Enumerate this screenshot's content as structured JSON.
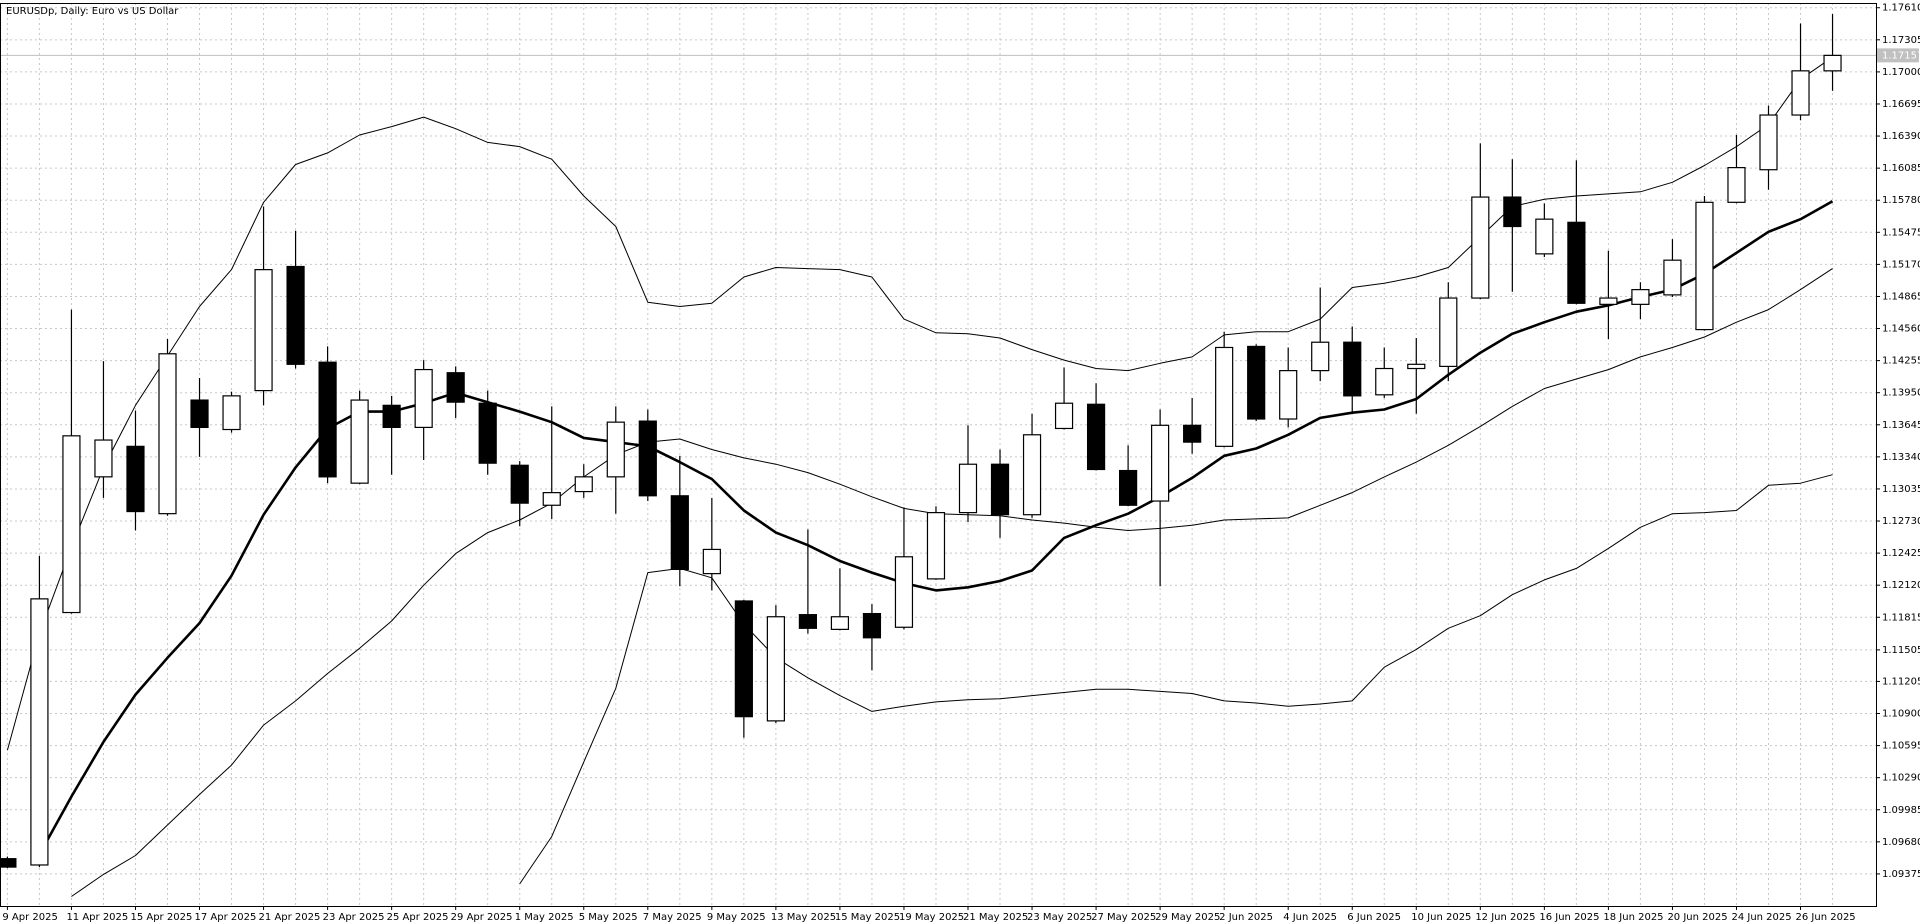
{
  "chart_data": {
    "type": "candlestick",
    "title": "EURUSDp, Daily:  Euro vs US Dollar",
    "current_price": 1.17157,
    "categories": [
      "9 Apr 2025",
      null,
      "11 Apr 2025",
      null,
      "15 Apr 2025",
      null,
      "17 Apr 2025",
      null,
      "21 Apr 2025",
      null,
      "23 Apr 2025",
      null,
      "25 Apr 2025",
      null,
      "29 Apr 2025",
      null,
      "1 May 2025",
      null,
      "5 May 2025",
      null,
      "7 May 2025",
      null,
      "9 May 2025",
      null,
      "13 May 2025",
      null,
      "15 May 2025",
      null,
      "19 May 2025",
      null,
      "21 May 2025",
      null,
      "23 May 2025",
      null,
      "27 May 2025",
      null,
      "29 May 2025",
      null,
      "2 Jun 2025",
      null,
      "4 Jun 2025",
      null,
      "6 Jun 2025",
      null,
      "10 Jun 2025",
      null,
      "12 Jun 2025",
      null,
      "16 Jun 2025",
      null,
      "18 Jun 2025",
      null,
      "20 Jun 2025",
      null,
      "24 Jun 2025",
      null,
      "26 Jun 2025",
      null
    ],
    "open": [
      1.0952,
      1.0946,
      1.1186,
      1.1315,
      1.1344,
      1.128,
      1.1388,
      1.136,
      1.1397,
      1.1515,
      1.1424,
      1.1309,
      1.1383,
      1.1362,
      1.1414,
      1.1385,
      1.1326,
      1.1288,
      1.1301,
      1.1315,
      1.1368,
      1.1297,
      1.1223,
      1.1197,
      1.1083,
      1.1184,
      1.117,
      1.1185,
      1.1172,
      1.1218,
      1.1281,
      1.1327,
      1.1279,
      1.1361,
      1.1384,
      1.1321,
      1.1292,
      1.1364,
      1.1344,
      1.1439,
      1.137,
      1.1416,
      1.1443,
      1.1393,
      1.1418,
      1.142,
      1.1485,
      1.1581,
      1.1527,
      1.1557,
      1.1479,
      1.1479,
      1.1488,
      1.1455,
      1.1576,
      1.1607,
      1.1659,
      1.1701
    ],
    "high": [
      1.0954,
      1.124,
      1.1474,
      1.1425,
      1.1378,
      1.1446,
      1.1409,
      1.1396,
      1.1572,
      1.1549,
      1.1439,
      1.1397,
      1.1392,
      1.1426,
      1.142,
      1.1397,
      1.133,
      1.1382,
      1.1327,
      1.1382,
      1.1379,
      1.1335,
      1.1295,
      1.1198,
      1.1193,
      1.1265,
      1.1228,
      1.1194,
      1.1286,
      1.1287,
      1.1364,
      1.1341,
      1.1375,
      1.1419,
      1.1404,
      1.1345,
      1.1379,
      1.139,
      1.1453,
      1.1441,
      1.1438,
      1.1495,
      1.1458,
      1.1438,
      1.1447,
      1.15,
      1.1632,
      1.1617,
      1.1575,
      1.1616,
      1.153,
      1.15,
      1.1541,
      1.1582,
      1.164,
      1.1668,
      1.1746,
      1.1755
    ],
    "low": [
      1.0943,
      1.0944,
      1.1185,
      1.1295,
      1.1264,
      1.1278,
      1.1334,
      1.1357,
      1.1383,
      1.1418,
      1.1309,
      1.1308,
      1.1317,
      1.1331,
      1.1371,
      1.1317,
      1.1268,
      1.1275,
      1.1295,
      1.128,
      1.1292,
      1.1211,
      1.1207,
      1.1067,
      1.1081,
      1.1166,
      1.1169,
      1.1131,
      1.117,
      1.1217,
      1.1272,
      1.1257,
      1.1276,
      1.136,
      1.1321,
      1.1287,
      1.1211,
      1.1337,
      1.1343,
      1.1368,
      1.1362,
      1.1406,
      1.1377,
      1.139,
      1.1375,
      1.1406,
      1.1484,
      1.1491,
      1.1524,
      1.1479,
      1.1446,
      1.1465,
      1.1486,
      1.1454,
      1.1575,
      1.1588,
      1.1654,
      1.1682
    ],
    "close": [
      1.0944,
      1.1199,
      1.1354,
      1.135,
      1.1282,
      1.1432,
      1.1362,
      1.1392,
      1.1512,
      1.1422,
      1.1315,
      1.1388,
      1.1362,
      1.1417,
      1.1386,
      1.1328,
      1.129,
      1.13,
      1.1315,
      1.1367,
      1.1297,
      1.1227,
      1.1246,
      1.1087,
      1.1182,
      1.1171,
      1.1182,
      1.1162,
      1.1239,
      1.1281,
      1.1327,
      1.1279,
      1.1355,
      1.1385,
      1.1322,
      1.1288,
      1.1364,
      1.1348,
      1.1438,
      1.137,
      1.1416,
      1.1443,
      1.1392,
      1.1418,
      1.1422,
      1.1485,
      1.1581,
      1.1553,
      1.156,
      1.148,
      1.1485,
      1.1493,
      1.1521,
      1.1576,
      1.1609,
      1.1659,
      1.1701,
      1.17157
    ],
    "up_color": "#ffffff",
    "down_color": "#000000",
    "lines": [
      {
        "color": "#000000",
        "values": [
          null,
          1.0956,
          1.1011,
          1.1063,
          1.1108,
          1.1143,
          1.1176,
          1.1221,
          1.1279,
          1.1324,
          1.1361,
          1.1377,
          1.1377,
          1.1385,
          1.1395,
          1.1386,
          1.1377,
          1.1367,
          1.1352,
          1.1348,
          1.1344,
          1.1329,
          1.1313,
          1.1283,
          1.1262,
          1.125,
          1.1235,
          1.1224,
          1.1214,
          1.1207,
          1.121,
          1.1216,
          1.1226,
          1.1257,
          1.1269,
          1.128,
          1.1296,
          1.1314,
          1.1335,
          1.1342,
          1.1355,
          1.1371,
          1.1376,
          1.1379,
          1.1389,
          1.1412,
          1.1433,
          1.1451,
          1.1462,
          1.1472,
          1.1478,
          1.1486,
          1.1493,
          1.1508,
          1.1528,
          1.1548,
          1.156,
          1.1577
        ]
      },
      {
        "color": "#000000",
        "values": [
          1.1055,
          1.1166,
          1.1248,
          1.1324,
          1.1383,
          1.143,
          1.1477,
          1.1512,
          1.1576,
          1.1612,
          1.1623,
          1.164,
          1.1648,
          1.1657,
          1.1646,
          1.1633,
          1.1629,
          1.1617,
          1.1582,
          1.1553,
          1.1481,
          1.1477,
          1.148,
          1.1505,
          1.1514,
          1.1513,
          1.1512,
          1.1505,
          1.1465,
          1.1452,
          1.1451,
          1.1447,
          1.1436,
          1.1426,
          1.1418,
          1.1416,
          1.1423,
          1.1429,
          1.145,
          1.1453,
          1.1453,
          1.1465,
          1.1495,
          1.1499,
          1.1505,
          1.1514,
          1.1543,
          1.1572,
          1.1579,
          1.1582,
          1.1584,
          1.1586,
          1.1595,
          1.1611,
          1.1629,
          1.165,
          1.1693,
          1.1714
        ]
      },
      {
        "color": "#000000",
        "values": [
          null,
          null,
          1.0916,
          1.0937,
          1.0955,
          1.0984,
          1.1013,
          1.1041,
          1.1079,
          1.1102,
          1.1128,
          1.1152,
          1.1178,
          1.1212,
          1.1242,
          1.1262,
          1.1274,
          1.129,
          1.1315,
          1.1336,
          1.1348,
          1.1351,
          1.1341,
          1.1333,
          1.1327,
          1.1319,
          1.1308,
          1.1296,
          1.1285,
          1.128,
          1.1279,
          1.1278,
          1.1274,
          1.1271,
          1.1267,
          1.1264,
          1.1266,
          1.1269,
          1.1274,
          1.1275,
          1.1276,
          1.1288,
          1.13,
          1.1315,
          1.1329,
          1.1345,
          1.1363,
          1.1382,
          1.1399,
          1.1408,
          1.1417,
          1.1429,
          1.1438,
          1.1448,
          1.1462,
          1.1474,
          1.1493,
          1.1513
        ]
      },
      {
        "color": "#000000",
        "values": [
          null,
          null,
          null,
          null,
          null,
          null,
          null,
          null,
          null,
          null,
          null,
          null,
          null,
          null,
          null,
          null,
          1.0928,
          1.0973,
          1.1044,
          1.1114,
          1.1224,
          1.1228,
          1.1219,
          1.1175,
          1.1143,
          1.1124,
          1.1107,
          1.1092,
          1.1097,
          1.1101,
          1.1103,
          1.1104,
          1.1107,
          1.111,
          1.1113,
          1.1113,
          1.1111,
          1.1109,
          1.1102,
          1.11,
          1.1097,
          1.1099,
          1.1102,
          1.1134,
          1.1151,
          1.1171,
          1.1183,
          1.1203,
          1.1217,
          1.1228,
          1.1247,
          1.1267,
          1.128,
          1.1281,
          1.1283,
          1.1307,
          1.1309,
          1.1317
        ]
      }
    ],
    "ylim": [
      1.0907,
      1.17655
    ],
    "yticks": [
      {
        "value": 1.1761,
        "label": "1.17610"
      },
      1.17305,
      {
        "value": 1.17,
        "label": "1.17000"
      },
      1.16695,
      {
        "value": 1.1639,
        "label": "1.16390"
      },
      1.16085,
      {
        "value": 1.1578,
        "label": "1.15780"
      },
      1.15475,
      {
        "value": 1.1517,
        "label": "1.15170"
      },
      1.14865,
      {
        "value": 1.1456,
        "label": "1.14560"
      },
      1.14255,
      {
        "value": 1.1395,
        "label": "1.13950"
      },
      1.13645,
      {
        "value": 1.1334,
        "label": "1.13340"
      },
      1.13035,
      {
        "value": 1.1273,
        "label": "1.12730"
      },
      1.12425,
      {
        "value": 1.1212,
        "label": "1.12120"
      },
      1.11815,
      1.11505,
      1.11205,
      {
        "value": 1.109,
        "label": "1.10900"
      },
      1.10595,
      {
        "value": 1.1029,
        "label": "1.10290"
      },
      1.09985,
      {
        "value": 1.0968,
        "label": "1.09680"
      },
      1.09375
    ],
    "grid": true
  }
}
